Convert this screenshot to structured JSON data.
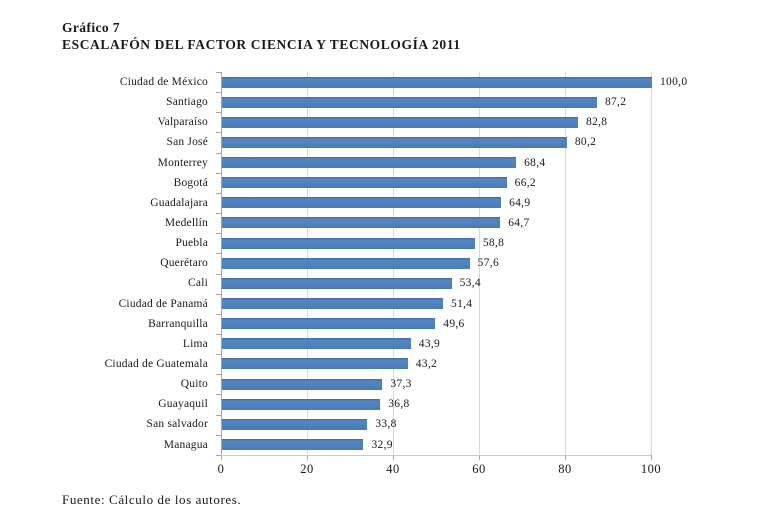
{
  "header": {
    "label": "Gráfico 7",
    "title": "ESCALAFÓN DEL FACTOR CIENCIA Y TECNOLOGÍA 2011"
  },
  "chart_data": {
    "type": "bar",
    "orientation": "horizontal",
    "title": "ESCALAFÓN DEL FACTOR CIENCIA Y TECNOLOGÍA 2011",
    "categories": [
      "Ciudad de México",
      "Santiago",
      "Valparaíso",
      "San José",
      "Monterrey",
      "Bogotá",
      "Guadalajara",
      "Medellín",
      "Puebla",
      "Querétaro",
      "Cali",
      "Ciudad de Panamá",
      "Barranquilla",
      "Lima",
      "Ciudad de Guatemala",
      "Quito",
      "Guayaquil",
      "San salvador",
      "Managua"
    ],
    "values": [
      100.0,
      87.2,
      82.8,
      80.2,
      68.4,
      66.2,
      64.9,
      64.7,
      58.8,
      57.6,
      53.4,
      51.4,
      49.6,
      43.9,
      43.2,
      37.3,
      36.8,
      33.8,
      32.9
    ],
    "value_labels": [
      "100,0",
      "87,2",
      "82,8",
      "80,2",
      "68,4",
      "66,2",
      "64,9",
      "64,7",
      "58,8",
      "57,6",
      "53,4",
      "51,4",
      "49,6",
      "43,9",
      "43,2",
      "37,3",
      "36,8",
      "33,8",
      "32,9"
    ],
    "xlabel": "",
    "ylabel": "",
    "xlim": [
      0,
      100
    ],
    "xticks": [
      0,
      20,
      40,
      60,
      80,
      100
    ],
    "xtick_labels": [
      "0",
      "20",
      "40",
      "60",
      "80",
      "100"
    ],
    "grid": true,
    "legend": false,
    "bar_color": "#4F81BD",
    "gridline_color": "#D9D9D9",
    "axis_color": "#A6A6A6"
  },
  "footer": {
    "source": "Fuente: Cálculo de los autores."
  }
}
